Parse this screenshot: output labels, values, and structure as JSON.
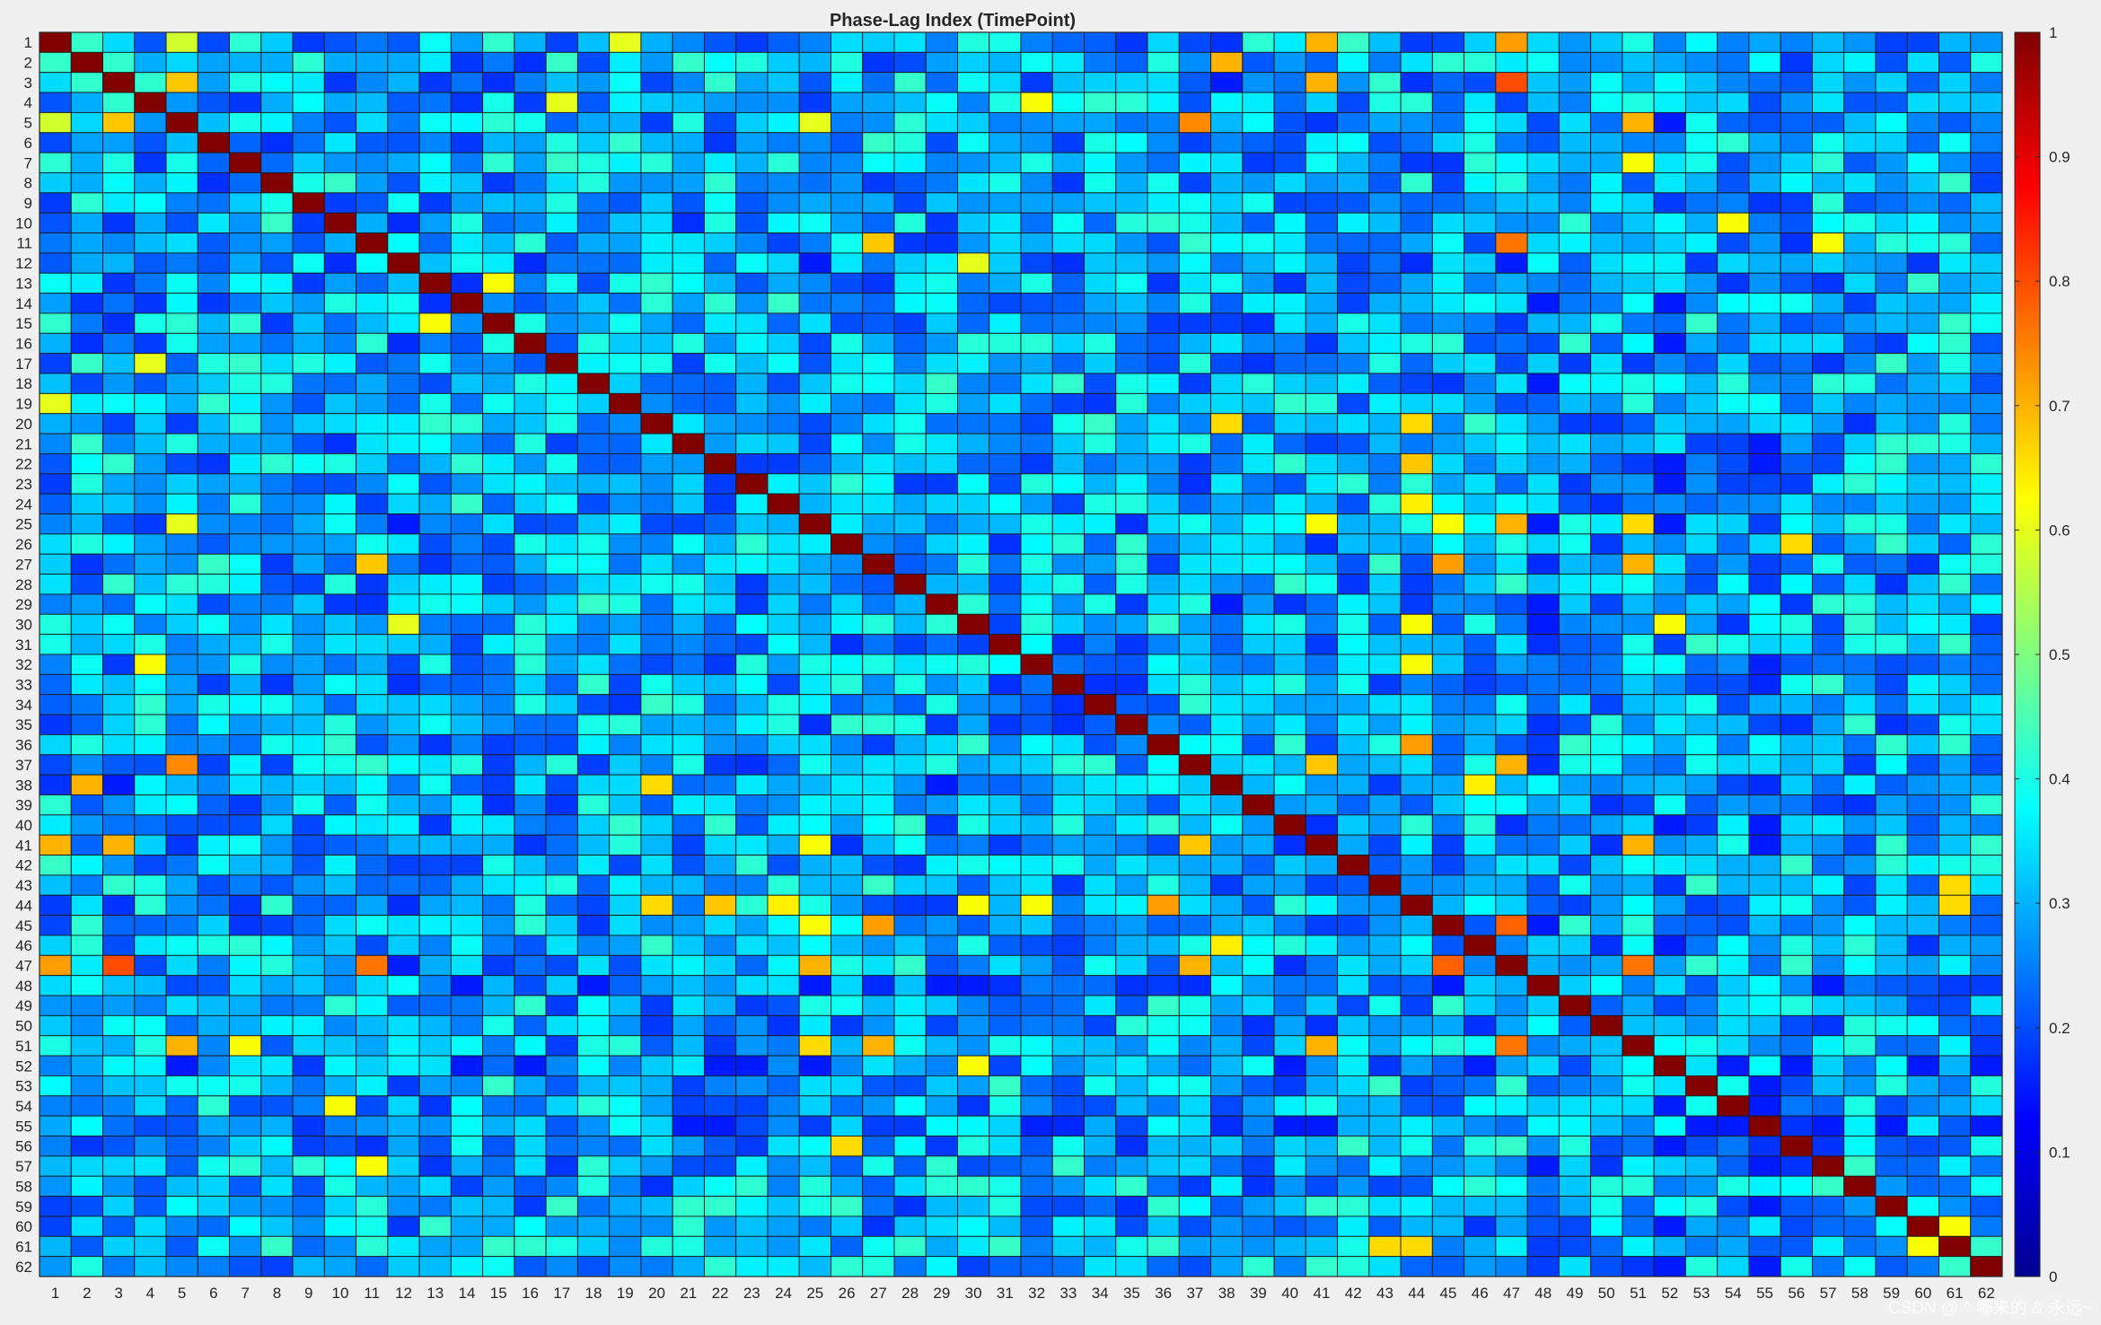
{
  "chart_data": {
    "type": "heatmap",
    "title": "Phase-Lag Index (TimePoint)",
    "xlabel": "",
    "ylabel": "",
    "n": 62,
    "x_tick_labels": [
      "1",
      "2",
      "3",
      "4",
      "5",
      "6",
      "7",
      "8",
      "9",
      "10",
      "11",
      "12",
      "13",
      "14",
      "15",
      "16",
      "17",
      "18",
      "19",
      "20",
      "21",
      "22",
      "23",
      "24",
      "25",
      "26",
      "27",
      "28",
      "29",
      "30",
      "31",
      "32",
      "33",
      "34",
      "35",
      "36",
      "37",
      "38",
      "39",
      "40",
      "41",
      "42",
      "43",
      "44",
      "45",
      "46",
      "47",
      "48",
      "49",
      "50",
      "51",
      "52",
      "53",
      "54",
      "55",
      "56",
      "57",
      "58",
      "59",
      "60",
      "61",
      "62"
    ],
    "y_tick_labels": [
      "1",
      "2",
      "3",
      "4",
      "5",
      "6",
      "7",
      "8",
      "9",
      "10",
      "11",
      "12",
      "13",
      "14",
      "15",
      "16",
      "17",
      "18",
      "19",
      "20",
      "21",
      "22",
      "23",
      "24",
      "25",
      "26",
      "27",
      "28",
      "29",
      "30",
      "31",
      "32",
      "33",
      "34",
      "35",
      "36",
      "37",
      "38",
      "39",
      "40",
      "41",
      "42",
      "43",
      "44",
      "45",
      "46",
      "47",
      "48",
      "49",
      "50",
      "51",
      "52",
      "53",
      "54",
      "55",
      "56",
      "57",
      "58",
      "59",
      "60",
      "61",
      "62"
    ],
    "diagonal_value": 1,
    "clim": [
      0,
      1
    ],
    "colormap": "jet",
    "grid": true,
    "colorbar": {
      "location": "right",
      "ticks": [
        0,
        0.1,
        0.2,
        0.3,
        0.4,
        0.5,
        0.6,
        0.7,
        0.8,
        0.9,
        1
      ],
      "tick_labels": [
        "0",
        "0.1",
        "0.2",
        "0.3",
        "0.4",
        "0.5",
        "0.6",
        "0.7",
        "0.8",
        "0.9",
        "1"
      ]
    },
    "highlights": [
      {
        "row": 1,
        "col": 41,
        "value": 0.68
      },
      {
        "row": 1,
        "col": 47,
        "value": 0.7
      },
      {
        "row": 1,
        "col": 5,
        "value": 0.58
      },
      {
        "row": 1,
        "col": 19,
        "value": 0.6
      },
      {
        "row": 2,
        "col": 38,
        "value": 0.7
      },
      {
        "row": 3,
        "col": 5,
        "value": 0.68
      },
      {
        "row": 3,
        "col": 47,
        "value": 0.78
      },
      {
        "row": 3,
        "col": 41,
        "value": 0.66
      },
      {
        "row": 4,
        "col": 32,
        "value": 0.64
      },
      {
        "row": 4,
        "col": 17,
        "value": 0.6
      },
      {
        "row": 5,
        "col": 37,
        "value": 0.7
      },
      {
        "row": 5,
        "col": 51,
        "value": 0.68
      },
      {
        "row": 5,
        "col": 25,
        "value": 0.6
      },
      {
        "row": 7,
        "col": 51,
        "value": 0.62
      },
      {
        "row": 10,
        "col": 54,
        "value": 0.6
      },
      {
        "row": 11,
        "col": 27,
        "value": 0.7
      },
      {
        "row": 11,
        "col": 47,
        "value": 0.76
      },
      {
        "row": 11,
        "col": 57,
        "value": 0.62
      },
      {
        "row": 12,
        "col": 30,
        "value": 0.6
      },
      {
        "row": 13,
        "col": 15,
        "value": 0.62
      },
      {
        "row": 17,
        "col": 4,
        "value": 0.6
      },
      {
        "row": 20,
        "col": 38,
        "value": 0.66
      },
      {
        "row": 20,
        "col": 44,
        "value": 0.66
      },
      {
        "row": 22,
        "col": 44,
        "value": 0.72
      },
      {
        "row": 24,
        "col": 44,
        "value": 0.64
      },
      {
        "row": 25,
        "col": 41,
        "value": 0.62
      },
      {
        "row": 25,
        "col": 45,
        "value": 0.62
      },
      {
        "row": 25,
        "col": 47,
        "value": 0.7
      },
      {
        "row": 25,
        "col": 51,
        "value": 0.66
      },
      {
        "row": 26,
        "col": 56,
        "value": 0.64
      },
      {
        "row": 27,
        "col": 11,
        "value": 0.68
      },
      {
        "row": 27,
        "col": 45,
        "value": 0.74
      },
      {
        "row": 27,
        "col": 51,
        "value": 0.7
      },
      {
        "row": 30,
        "col": 44,
        "value": 0.62
      },
      {
        "row": 30,
        "col": 52,
        "value": 0.62
      },
      {
        "row": 32,
        "col": 44,
        "value": 0.62
      },
      {
        "row": 32,
        "col": 4,
        "value": 0.62
      },
      {
        "row": 36,
        "col": 44,
        "value": 0.72
      },
      {
        "row": 37,
        "col": 5,
        "value": 0.74
      },
      {
        "row": 37,
        "col": 41,
        "value": 0.66
      },
      {
        "row": 37,
        "col": 47,
        "value": 0.72
      },
      {
        "row": 38,
        "col": 2,
        "value": 0.7
      },
      {
        "row": 38,
        "col": 20,
        "value": 0.66
      },
      {
        "row": 38,
        "col": 46,
        "value": 0.64
      },
      {
        "row": 41,
        "col": 1,
        "value": 0.7
      },
      {
        "row": 41,
        "col": 3,
        "value": 0.7
      },
      {
        "row": 41,
        "col": 37,
        "value": 0.68
      },
      {
        "row": 41,
        "col": 51,
        "value": 0.7
      },
      {
        "row": 43,
        "col": 61,
        "value": 0.66
      },
      {
        "row": 44,
        "col": 22,
        "value": 0.68
      },
      {
        "row": 44,
        "col": 36,
        "value": 0.72
      },
      {
        "row": 45,
        "col": 27,
        "value": 0.72
      },
      {
        "row": 47,
        "col": 1,
        "value": 0.72
      },
      {
        "row": 47,
        "col": 3,
        "value": 0.8
      },
      {
        "row": 47,
        "col": 11,
        "value": 0.76
      },
      {
        "row": 47,
        "col": 25,
        "value": 0.7
      },
      {
        "row": 47,
        "col": 37,
        "value": 0.7
      },
      {
        "row": 47,
        "col": 45,
        "value": 0.78
      },
      {
        "row": 47,
        "col": 51,
        "value": 0.76
      },
      {
        "row": 51,
        "col": 5,
        "value": 0.7
      },
      {
        "row": 51,
        "col": 27,
        "value": 0.7
      },
      {
        "row": 51,
        "col": 41,
        "value": 0.7
      },
      {
        "row": 51,
        "col": 47,
        "value": 0.76
      },
      {
        "row": 54,
        "col": 10,
        "value": 0.62
      },
      {
        "row": 56,
        "col": 26,
        "value": 0.66
      },
      {
        "row": 60,
        "col": 61,
        "value": 0.62
      },
      {
        "row": 61,
        "col": 44,
        "value": 0.66
      }
    ],
    "low_rows": [
      12,
      38,
      48,
      52,
      55
    ],
    "low_cols": [
      12,
      38,
      48,
      52,
      55
    ]
  },
  "watermark": "CSDN @ ^ 哪来的 & 永远~"
}
